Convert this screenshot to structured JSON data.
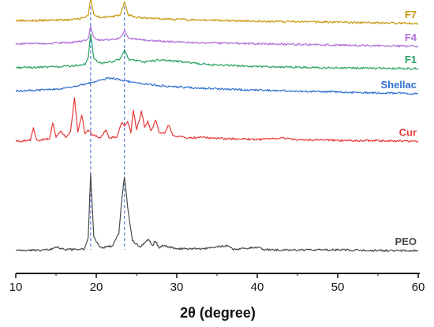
{
  "chart_data": {
    "type": "line",
    "title": "",
    "xlabel": "2θ (degree)",
    "ylabel": "",
    "xlim": [
      10,
      60
    ],
    "xticks": [
      10,
      20,
      30,
      40,
      50,
      60
    ],
    "grid": false,
    "legend": "labels placed at right end of each trace",
    "reference_lines_x": [
      19.3,
      23.5
    ],
    "reference_line_color": "#5b7fd6",
    "series": [
      {
        "name": "F7",
        "color": "#c9970f",
        "offset": 6.9,
        "points": [
          [
            10,
            0.05
          ],
          [
            12,
            0.05
          ],
          [
            15,
            0.06
          ],
          [
            17,
            0.08
          ],
          [
            18.5,
            0.12
          ],
          [
            19.0,
            0.22
          ],
          [
            19.3,
            0.7
          ],
          [
            19.7,
            0.22
          ],
          [
            20.5,
            0.15
          ],
          [
            22,
            0.16
          ],
          [
            23.0,
            0.22
          ],
          [
            23.5,
            0.62
          ],
          [
            24.0,
            0.22
          ],
          [
            25,
            0.15
          ],
          [
            28,
            0.1
          ],
          [
            32,
            0.07
          ],
          [
            40,
            0.03
          ],
          [
            50,
            0.0
          ],
          [
            60,
            -0.04
          ]
        ]
      },
      {
        "name": "F4",
        "color": "#b06fd6",
        "offset": 6.2,
        "points": [
          [
            10,
            0.05
          ],
          [
            14,
            0.06
          ],
          [
            17,
            0.09
          ],
          [
            18.6,
            0.14
          ],
          [
            19.0,
            0.22
          ],
          [
            19.3,
            0.55
          ],
          [
            19.7,
            0.22
          ],
          [
            20.5,
            0.16
          ],
          [
            22,
            0.18
          ],
          [
            23.0,
            0.22
          ],
          [
            23.5,
            0.45
          ],
          [
            24.0,
            0.22
          ],
          [
            26,
            0.16
          ],
          [
            30,
            0.1
          ],
          [
            35,
            0.07
          ],
          [
            45,
            0.03
          ],
          [
            60,
            -0.03
          ]
        ]
      },
      {
        "name": "F1",
        "color": "#27a063",
        "offset": 5.5,
        "points": [
          [
            10,
            0.03
          ],
          [
            14,
            0.04
          ],
          [
            17,
            0.08
          ],
          [
            18.6,
            0.12
          ],
          [
            19.0,
            0.35
          ],
          [
            19.3,
            1.05
          ],
          [
            19.7,
            0.3
          ],
          [
            20.5,
            0.16
          ],
          [
            22,
            0.2
          ],
          [
            23.0,
            0.3
          ],
          [
            23.5,
            0.55
          ],
          [
            24.0,
            0.28
          ],
          [
            26,
            0.2
          ],
          [
            28,
            0.26
          ],
          [
            30,
            0.22
          ],
          [
            34,
            0.12
          ],
          [
            40,
            0.06
          ],
          [
            50,
            0.02
          ],
          [
            60,
            0.0
          ]
        ]
      },
      {
        "name": "Shellac",
        "color": "#2f6fcf",
        "offset": 4.8,
        "points": [
          [
            10,
            0.02
          ],
          [
            13,
            0.05
          ],
          [
            16,
            0.1
          ],
          [
            18,
            0.2
          ],
          [
            20,
            0.3
          ],
          [
            21.5,
            0.42
          ],
          [
            23,
            0.36
          ],
          [
            25,
            0.26
          ],
          [
            28,
            0.18
          ],
          [
            32,
            0.12
          ],
          [
            38,
            0.06
          ],
          [
            45,
            0.02
          ],
          [
            52,
            -0.02
          ],
          [
            60,
            -0.06
          ]
        ]
      },
      {
        "name": "Cur",
        "color": "#e8393b",
        "offset": 3.3,
        "points": [
          [
            10,
            0.0
          ],
          [
            11.8,
            0.03
          ],
          [
            12.2,
            0.4
          ],
          [
            12.6,
            0.03
          ],
          [
            14.2,
            0.08
          ],
          [
            14.6,
            0.55
          ],
          [
            15.0,
            0.12
          ],
          [
            15.6,
            0.3
          ],
          [
            16.2,
            0.12
          ],
          [
            16.8,
            0.3
          ],
          [
            17.3,
            1.3
          ],
          [
            17.7,
            0.3
          ],
          [
            18.2,
            0.8
          ],
          [
            18.6,
            0.2
          ],
          [
            19.0,
            0.35
          ],
          [
            19.5,
            0.2
          ],
          [
            20.5,
            0.1
          ],
          [
            21.2,
            0.35
          ],
          [
            21.6,
            0.1
          ],
          [
            22.6,
            0.15
          ],
          [
            23.2,
            0.6
          ],
          [
            23.5,
            0.45
          ],
          [
            23.9,
            0.6
          ],
          [
            24.3,
            0.25
          ],
          [
            24.6,
            0.95
          ],
          [
            25.0,
            0.35
          ],
          [
            25.6,
            0.9
          ],
          [
            26.0,
            0.45
          ],
          [
            26.4,
            0.6
          ],
          [
            26.8,
            0.3
          ],
          [
            27.4,
            0.65
          ],
          [
            27.8,
            0.25
          ],
          [
            28.5,
            0.25
          ],
          [
            29.0,
            0.5
          ],
          [
            29.5,
            0.2
          ],
          [
            31,
            0.1
          ],
          [
            33,
            0.12
          ],
          [
            36,
            0.08
          ],
          [
            40,
            0.06
          ],
          [
            43,
            0.1
          ],
          [
            45,
            0.05
          ],
          [
            50,
            0.03
          ],
          [
            55,
            0.02
          ],
          [
            60,
            0.0
          ]
        ]
      },
      {
        "name": "PEO",
        "color": "#4a4a4a",
        "offset": 0.0,
        "points": [
          [
            10,
            0.0
          ],
          [
            14,
            0.02
          ],
          [
            15.2,
            0.1
          ],
          [
            16,
            0.03
          ],
          [
            18.5,
            0.05
          ],
          [
            19.0,
            0.4
          ],
          [
            19.3,
            2.3
          ],
          [
            19.7,
            0.4
          ],
          [
            20.5,
            0.08
          ],
          [
            22,
            0.15
          ],
          [
            22.8,
            0.5
          ],
          [
            23.2,
            1.6
          ],
          [
            23.5,
            2.25
          ],
          [
            23.9,
            1.3
          ],
          [
            24.5,
            0.3
          ],
          [
            25.5,
            0.1
          ],
          [
            26.5,
            0.35
          ],
          [
            27.0,
            0.12
          ],
          [
            27.3,
            0.3
          ],
          [
            27.8,
            0.1
          ],
          [
            28.3,
            0.15
          ],
          [
            30,
            0.06
          ],
          [
            33,
            0.05
          ],
          [
            36.3,
            0.15
          ],
          [
            37,
            0.04
          ],
          [
            40,
            0.1
          ],
          [
            41,
            0.02
          ],
          [
            45,
            0.02
          ],
          [
            50,
            0.02
          ],
          [
            55,
            0.0
          ],
          [
            60,
            0.0
          ]
        ]
      }
    ]
  }
}
